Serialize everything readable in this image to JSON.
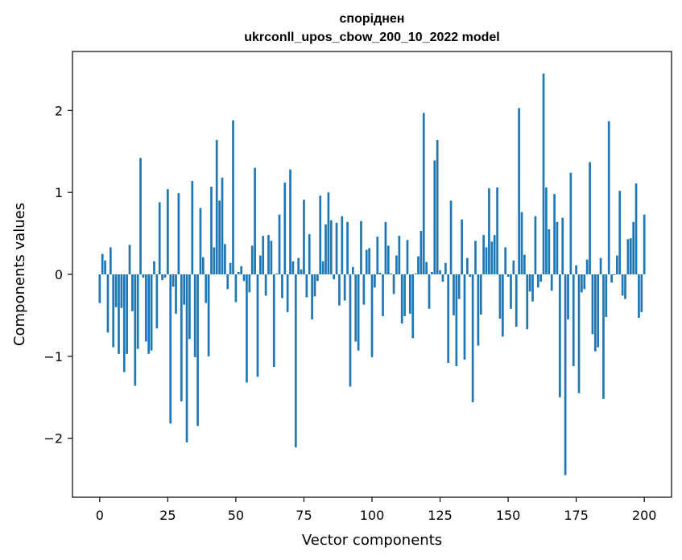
{
  "chart_data": {
    "type": "bar",
    "title_line1": "споріднен",
    "title_line2": "ukrconll_upos_cbow_200_10_2022 model",
    "xlabel": "Vector components",
    "ylabel": "Components values",
    "xlim": [
      -10,
      210
    ],
    "ylim": [
      -2.72,
      2.72
    ],
    "xticks": [
      0,
      25,
      50,
      75,
      100,
      125,
      150,
      175,
      200
    ],
    "yticks": [
      -2,
      -1,
      0,
      1,
      2
    ],
    "ytick_labels": [
      "−2",
      "−1",
      "0",
      "1",
      "2"
    ],
    "bar_color": "#1f77b4",
    "grid": false,
    "values": [
      -0.35,
      0.25,
      0.17,
      -0.71,
      0.33,
      -0.89,
      -0.4,
      -0.97,
      -0.41,
      -1.19,
      -0.97,
      0.36,
      -0.45,
      -1.36,
      -0.91,
      1.42,
      -0.04,
      -0.82,
      -0.97,
      -0.93,
      0.16,
      -0.66,
      0.88,
      -0.07,
      -0.04,
      1.04,
      -1.82,
      -0.15,
      -0.48,
      0.99,
      -1.55,
      -0.37,
      -2.05,
      -0.79,
      1.14,
      -1.01,
      -1.85,
      0.81,
      0.21,
      -0.35,
      -1.0,
      1.07,
      0.33,
      1.64,
      0.9,
      1.18,
      0.37,
      -0.18,
      0.14,
      1.88,
      -0.34,
      0.03,
      0.1,
      -0.08,
      -1.32,
      -0.22,
      0.35,
      1.3,
      -1.25,
      0.23,
      0.47,
      -0.26,
      0.48,
      0.41,
      -1.13,
      0.01,
      0.73,
      -0.29,
      1.12,
      -0.46,
      1.28,
      0.16,
      -2.11,
      0.2,
      0.06,
      0.91,
      -0.28,
      0.49,
      -0.55,
      -0.27,
      -0.08,
      0.96,
      0.16,
      0.61,
      1.0,
      0.66,
      -0.06,
      0.63,
      -0.38,
      0.71,
      -0.32,
      0.64,
      -1.37,
      0.09,
      -0.82,
      -0.93,
      0.65,
      -0.37,
      0.3,
      0.32,
      -1.01,
      -0.16,
      0.46,
      0.02,
      -0.51,
      0.64,
      0.35,
      0.01,
      -0.24,
      0.23,
      0.47,
      -0.6,
      -0.51,
      0.42,
      -0.48,
      -0.78,
      0.01,
      0.22,
      0.53,
      1.97,
      0.15,
      -0.42,
      0.03,
      1.39,
      1.64,
      0.05,
      -0.09,
      0.14,
      -1.08,
      0.9,
      -0.5,
      -1.12,
      -0.3,
      0.67,
      -1.04,
      0.2,
      -0.03,
      -1.56,
      0.41,
      -0.87,
      -0.49,
      0.48,
      0.33,
      1.05,
      0.4,
      0.48,
      1.06,
      -0.54,
      -0.76,
      0.33,
      -0.03,
      -0.42,
      0.17,
      -0.64,
      2.03,
      0.76,
      0.24,
      -0.67,
      -0.21,
      -0.33,
      0.71,
      -0.16,
      -0.09,
      2.45,
      1.06,
      0.55,
      -0.2,
      0.98,
      0.64,
      -1.5,
      0.69,
      -2.45,
      -0.55,
      1.24,
      -1.12,
      0.11,
      -1.45,
      -0.22,
      -0.18,
      0.18,
      1.37,
      -0.73,
      -0.94,
      -0.89,
      0.2,
      -1.52,
      -0.52,
      1.87,
      -0.1,
      -0.01,
      0.23,
      1.02,
      -0.26,
      -0.3,
      0.43,
      0.44,
      0.64,
      1.11,
      -0.53,
      -0.46,
      0.73
    ]
  }
}
